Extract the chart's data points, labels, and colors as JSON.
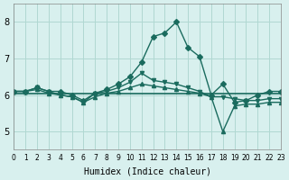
{
  "xlabel": "Humidex (Indice chaleur)",
  "xlim": [
    0,
    23
  ],
  "ylim": [
    4.5,
    8.5
  ],
  "yticks": [
    5,
    6,
    7,
    8
  ],
  "xticks": [
    0,
    1,
    2,
    3,
    4,
    5,
    6,
    7,
    8,
    9,
    10,
    11,
    12,
    13,
    14,
    15,
    16,
    17,
    18,
    19,
    20,
    21,
    22,
    23
  ],
  "bg_color": "#d8f0ee",
  "line_color": "#1a6b5e",
  "grid_color": "#b0d8d2",
  "series": {
    "line1": [
      6.1,
      6.1,
      6.2,
      6.1,
      6.1,
      6.0,
      5.85,
      6.05,
      6.15,
      6.3,
      6.5,
      6.9,
      7.6,
      7.7,
      8.0,
      7.3,
      7.05,
      6.0,
      6.3,
      5.8,
      5.85,
      6.0,
      6.1,
      6.1
    ],
    "line2": [
      6.1,
      6.1,
      6.2,
      6.1,
      6.0,
      5.95,
      5.8,
      6.05,
      6.1,
      6.2,
      6.35,
      6.6,
      6.4,
      6.35,
      6.3,
      6.2,
      6.1,
      5.95,
      5.95,
      5.9,
      5.85,
      5.85,
      5.9,
      5.9
    ],
    "line3": [
      6.1,
      6.1,
      6.15,
      6.05,
      6.0,
      5.95,
      5.8,
      5.95,
      6.05,
      6.1,
      6.2,
      6.3,
      6.25,
      6.2,
      6.15,
      6.1,
      6.05,
      5.95,
      5.0,
      5.7,
      5.75,
      5.75,
      5.8,
      5.8
    ],
    "line4": [
      6.05,
      6.05,
      6.05,
      6.05,
      6.05,
      6.05,
      6.05,
      6.05,
      6.05,
      6.05,
      6.05,
      6.05,
      6.05,
      6.05,
      6.05,
      6.05,
      6.05,
      6.05,
      6.05,
      6.05,
      6.05,
      6.05,
      6.05,
      6.05
    ]
  }
}
